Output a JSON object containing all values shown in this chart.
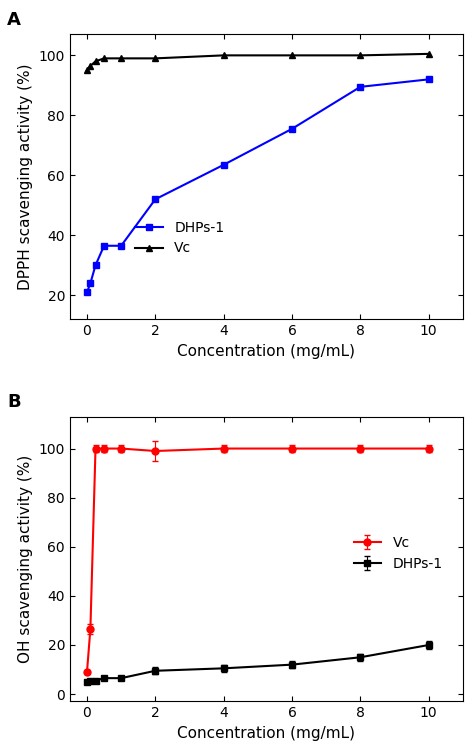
{
  "panel_A": {
    "title": "A",
    "xlabel": "Concentration (mg/mL)",
    "ylabel": "DPPH scavenging activity (%)",
    "xlim": [
      -0.5,
      11.0
    ],
    "ylim": [
      12,
      107
    ],
    "yticks": [
      20,
      40,
      60,
      80,
      100
    ],
    "xticks": [
      0,
      2,
      4,
      6,
      8,
      10
    ],
    "DHPs1": {
      "x": [
        0.0,
        0.1,
        0.25,
        0.5,
        1.0,
        2.0,
        4.0,
        6.0,
        8.0,
        10.0
      ],
      "y": [
        21.0,
        24.0,
        30.0,
        36.5,
        36.5,
        52.0,
        63.5,
        75.5,
        89.5,
        92.0
      ],
      "color": "#0000FF",
      "marker": "s",
      "label": "DHPs-1"
    },
    "Vc": {
      "x": [
        0.0,
        0.1,
        0.25,
        0.5,
        1.0,
        2.0,
        4.0,
        6.0,
        8.0,
        10.0
      ],
      "y": [
        95.0,
        96.5,
        98.0,
        99.0,
        99.0,
        99.0,
        100.0,
        100.0,
        100.0,
        100.5
      ],
      "color": "#000000",
      "marker": "^",
      "label": "Vc"
    }
  },
  "panel_B": {
    "title": "B",
    "xlabel": "Concentration (mg/mL)",
    "ylabel": "OH scavenging activity (%)",
    "xlim": [
      -0.5,
      11.0
    ],
    "ylim": [
      -3,
      113
    ],
    "yticks": [
      0,
      20,
      40,
      60,
      80,
      100
    ],
    "xticks": [
      0,
      2,
      4,
      6,
      8,
      10
    ],
    "Vc": {
      "x": [
        0.0,
        0.1,
        0.25,
        0.5,
        1.0,
        2.0,
        4.0,
        6.0,
        8.0,
        10.0
      ],
      "y": [
        9.0,
        26.5,
        100.0,
        100.0,
        100.0,
        99.0,
        100.0,
        100.0,
        100.0,
        100.0
      ],
      "yerr": [
        1.0,
        2.0,
        1.5,
        1.5,
        1.5,
        4.0,
        1.5,
        1.5,
        1.5,
        1.5
      ],
      "color": "#FF0000",
      "marker": "o",
      "label": "Vc"
    },
    "DHPs1": {
      "x": [
        0.0,
        0.1,
        0.25,
        0.5,
        1.0,
        2.0,
        4.0,
        6.0,
        8.0,
        10.0
      ],
      "y": [
        5.0,
        5.5,
        5.5,
        6.5,
        6.5,
        9.5,
        10.5,
        12.0,
        15.0,
        20.0
      ],
      "yerr": [
        0.5,
        0.5,
        0.5,
        0.5,
        0.5,
        1.5,
        1.5,
        1.5,
        1.5,
        1.5
      ],
      "color": "#000000",
      "marker": "s",
      "label": "DHPs-1"
    }
  },
  "figure_bg": "#FFFFFF",
  "font_size": 10,
  "label_fontsize": 11,
  "title_fontsize": 13,
  "marker_size": 5,
  "line_width": 1.5
}
